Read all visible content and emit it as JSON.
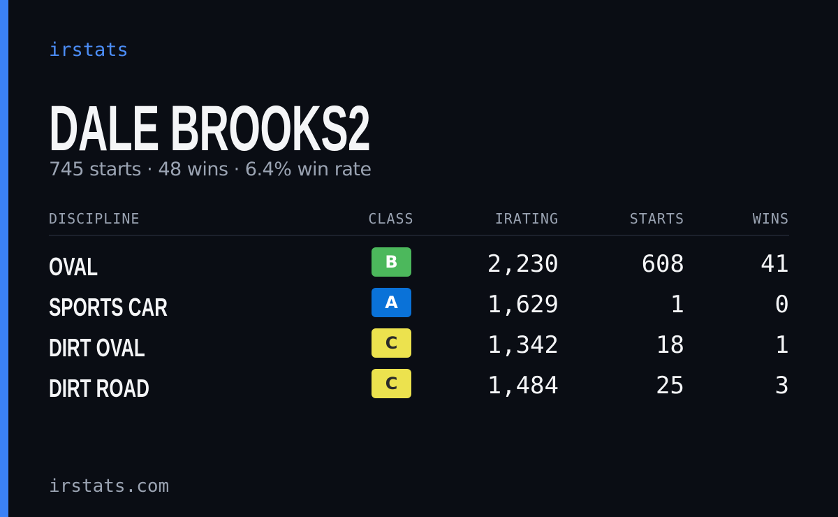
{
  "header": {
    "brand": "irstats"
  },
  "profile": {
    "name": "DALE BROOKS2",
    "summary": "745 starts · 48 wins · 6.4% win rate"
  },
  "table": {
    "columns": [
      "DISCIPLINE",
      "CLASS",
      "IRATING",
      "STARTS",
      "WINS"
    ],
    "rows": [
      [
        "OVAL",
        "B",
        "2,230",
        "608",
        "41"
      ],
      [
        "SPORTS CAR",
        "A",
        "1,629",
        "1",
        "0"
      ],
      [
        "DIRT OVAL",
        "C",
        "1,342",
        "18",
        "1"
      ],
      [
        "DIRT ROAD",
        "C",
        "1,484",
        "25",
        "3"
      ]
    ]
  },
  "footer": {
    "domain": "irstats.com"
  }
}
